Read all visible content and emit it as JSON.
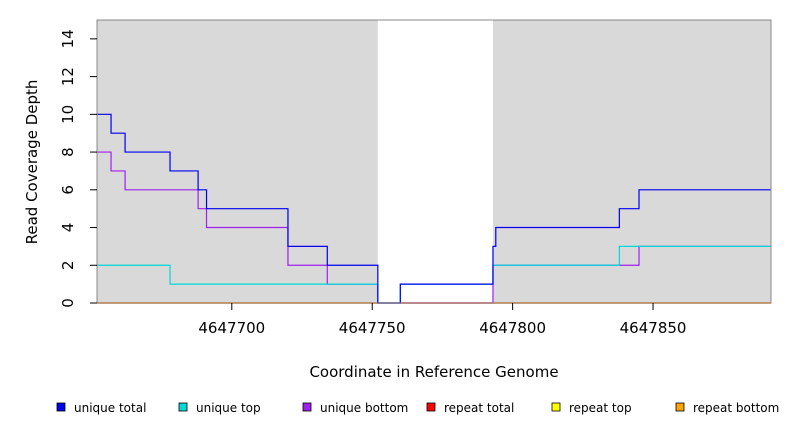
{
  "chart_data": {
    "type": "line",
    "xlabel": "Coordinate in Reference Genome",
    "ylabel": "Read Coverage Depth",
    "xlim": [
      4647652,
      4647892
    ],
    "ylim": [
      0,
      15
    ],
    "x_ticks": [
      4647700,
      4647750,
      4647800,
      4647850
    ],
    "y_ticks": [
      0,
      2,
      4,
      6,
      8,
      10,
      12,
      14
    ],
    "shaded_regions": [
      [
        4647652,
        4647752
      ],
      [
        4647793,
        4647892
      ]
    ],
    "shade_color": "#d9d9d9",
    "legend_position": "bottom",
    "series": [
      {
        "name": "unique total",
        "color": "#0000ee",
        "steps": [
          {
            "x": 4647652,
            "y": 10
          },
          {
            "x": 4647657,
            "y": 9
          },
          {
            "x": 4647662,
            "y": 8
          },
          {
            "x": 4647678,
            "y": 7
          },
          {
            "x": 4647688,
            "y": 6
          },
          {
            "x": 4647691,
            "y": 5
          },
          {
            "x": 4647720,
            "y": 3
          },
          {
            "x": 4647734,
            "y": 2
          },
          {
            "x": 4647752,
            "y": 0
          },
          {
            "x": 4647760,
            "y": 1
          },
          {
            "x": 4647793,
            "y": 3
          },
          {
            "x": 4647794,
            "y": 4
          },
          {
            "x": 4647838,
            "y": 5
          },
          {
            "x": 4647845,
            "y": 6
          },
          {
            "x": 4647892,
            "y": 6
          }
        ]
      },
      {
        "name": "unique top",
        "color": "#00d8d8",
        "steps": [
          {
            "x": 4647652,
            "y": 2
          },
          {
            "x": 4647678,
            "y": 1
          },
          {
            "x": 4647752,
            "y": 0
          },
          {
            "x": 4647760,
            "y": 1
          },
          {
            "x": 4647793,
            "y": 2
          },
          {
            "x": 4647838,
            "y": 3
          },
          {
            "x": 4647892,
            "y": 3
          }
        ]
      },
      {
        "name": "unique bottom",
        "color": "#a020f0",
        "steps": [
          {
            "x": 4647652,
            "y": 8
          },
          {
            "x": 4647657,
            "y": 7
          },
          {
            "x": 4647662,
            "y": 6
          },
          {
            "x": 4647688,
            "y": 5
          },
          {
            "x": 4647691,
            "y": 4
          },
          {
            "x": 4647720,
            "y": 2
          },
          {
            "x": 4647734,
            "y": 1
          },
          {
            "x": 4647752,
            "y": 0
          },
          {
            "x": 4647793,
            "y": 2
          },
          {
            "x": 4647845,
            "y": 3
          },
          {
            "x": 4647892,
            "y": 3
          }
        ]
      },
      {
        "name": "repeat total",
        "color": "#ff0000",
        "steps": [
          {
            "x": 4647652,
            "y": 0
          },
          {
            "x": 4647892,
            "y": 0
          }
        ]
      },
      {
        "name": "repeat top",
        "color": "#ffff00",
        "steps": [
          {
            "x": 4647652,
            "y": 0
          },
          {
            "x": 4647892,
            "y": 0
          }
        ]
      },
      {
        "name": "repeat bottom",
        "color": "#ffa500",
        "steps": [
          {
            "x": 4647652,
            "y": 0
          },
          {
            "x": 4647892,
            "y": 0
          }
        ]
      }
    ]
  }
}
